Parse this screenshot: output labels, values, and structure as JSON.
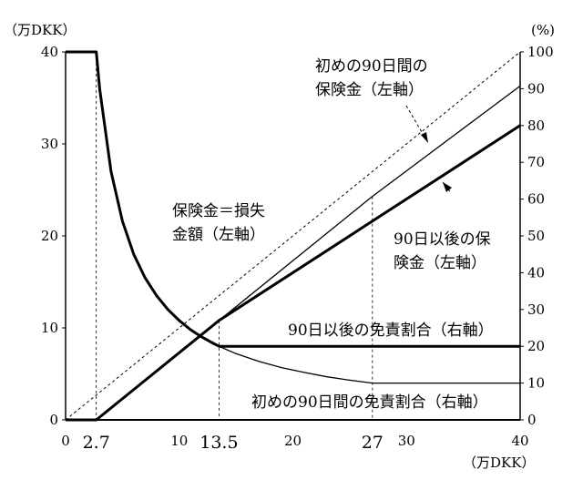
{
  "chart_data": {
    "type": "line",
    "x_unit": "（万DKK）",
    "y_left_unit": "（万DKK）",
    "y_right_unit": "(%)",
    "xlim": [
      0,
      40
    ],
    "ylim_left": [
      0,
      40
    ],
    "ylim_right": [
      0,
      100
    ],
    "x_ticks": [
      "0",
      "10",
      "20",
      "30",
      "40"
    ],
    "x_special_ticks": [
      "2.7",
      "13.5",
      "27"
    ],
    "y_left_ticks": [
      "0",
      "10",
      "20",
      "30",
      "40"
    ],
    "y_right_ticks": [
      "0",
      "10",
      "20",
      "30",
      "40",
      "50",
      "60",
      "70",
      "80",
      "90",
      "100"
    ],
    "guides": [
      2.7,
      13.5,
      27
    ],
    "series": [
      {
        "name": "保険金＝損失金額（左軸）",
        "axis": "left",
        "style": "dotted",
        "x": [
          0,
          40
        ],
        "y": [
          0,
          40
        ]
      },
      {
        "name": "初めの90日間の保険金（左軸）",
        "axis": "left",
        "style": "thin",
        "x": [
          0,
          2.7,
          13.5,
          27,
          40
        ],
        "y": [
          0,
          0,
          10.8,
          24.3,
          36.3
        ]
      },
      {
        "name": "90日以後の保険金（左軸）",
        "axis": "left",
        "style": "thick",
        "x": [
          0,
          2.7,
          13.5,
          27,
          40
        ],
        "y": [
          0,
          0,
          10.8,
          21.6,
          32
        ]
      },
      {
        "name": "90日以後の免責割合（右軸）",
        "axis": "right",
        "style": "thick",
        "x": [
          0,
          2.7,
          3,
          4,
          5,
          6,
          7,
          8,
          9,
          10,
          11,
          12,
          13,
          13.5,
          40
        ],
        "y": [
          100,
          100,
          90,
          67.5,
          54,
          45,
          38.6,
          33.8,
          30,
          27,
          24.5,
          22.5,
          20.8,
          20,
          20
        ]
      },
      {
        "name": "初めの90日間の免責割合（右軸）",
        "axis": "right",
        "style": "thin",
        "x": [
          13.5,
          15,
          17,
          19,
          21,
          23,
          25,
          27,
          40
        ],
        "y": [
          20,
          18,
          15.9,
          14.2,
          12.9,
          11.7,
          10.8,
          10,
          10
        ]
      }
    ],
    "annotations": [
      {
        "id": "first90_benefit",
        "lines": [
          "初めの90日間の",
          "保険金（左軸）"
        ]
      },
      {
        "id": "equal_line",
        "lines": [
          "保険金＝損失",
          "金額（左軸）"
        ]
      },
      {
        "id": "after90_benefit",
        "lines": [
          "90日以後の保",
          "険金（左軸）"
        ]
      },
      {
        "id": "after90_deductible",
        "lines": [
          "90日以後の免責割合（右軸）"
        ]
      },
      {
        "id": "first90_deductible",
        "lines": [
          "初めの90日間の免責割合（右軸）"
        ]
      }
    ]
  }
}
